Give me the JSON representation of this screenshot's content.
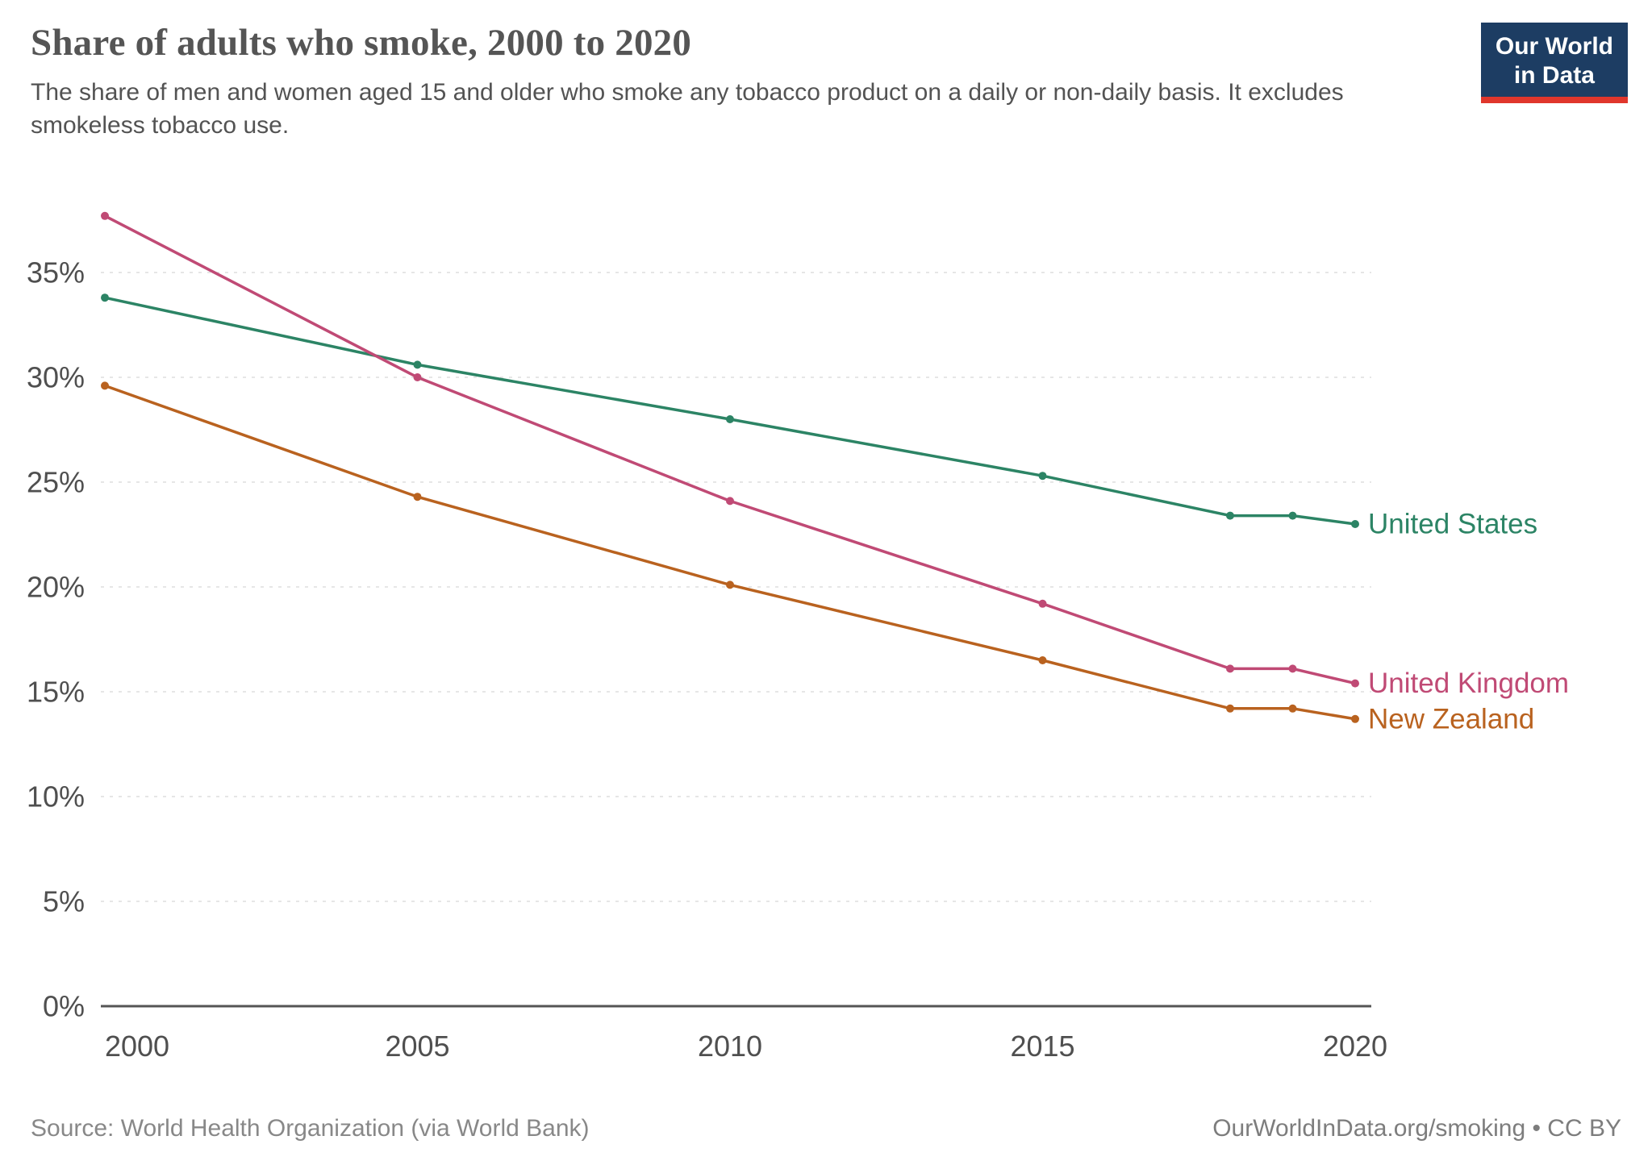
{
  "header": {
    "title": "Share of adults who smoke, 2000 to 2020",
    "subtitle": "The share of men and women aged 15 and older who smoke any tobacco product on a daily or non-daily basis. It excludes smokeless tobacco use."
  },
  "logo": {
    "line1": "Our World",
    "line2": "in Data"
  },
  "footer": {
    "source": "Source: World Health Organization (via World Bank)",
    "link": "OurWorldInData.org/smoking • CC BY"
  },
  "colors": {
    "grid": "#dddddd",
    "axis": "#555555",
    "tick_label": "#4f4f4f"
  },
  "chart_data": {
    "type": "line",
    "title": "Share of adults who smoke, 2000 to 2020",
    "xlabel": "",
    "ylabel": "",
    "x": [
      2000,
      2005,
      2010,
      2015,
      2018,
      2019,
      2020
    ],
    "series": [
      {
        "name": "United States",
        "color": "#2C8465",
        "values": [
          33.8,
          30.6,
          28.0,
          25.3,
          23.4,
          23.4,
          23.0
        ]
      },
      {
        "name": "United Kingdom",
        "color": "#C04A75",
        "values": [
          37.7,
          30.0,
          24.1,
          19.2,
          16.1,
          16.1,
          15.4
        ]
      },
      {
        "name": "New Zealand",
        "color": "#B9621F",
        "values": [
          29.6,
          24.3,
          20.1,
          16.5,
          14.2,
          14.2,
          13.7
        ]
      }
    ],
    "ylim": [
      0,
      38
    ],
    "yticks": [
      0,
      5,
      10,
      15,
      20,
      25,
      30,
      35
    ],
    "ytick_suffix": "%",
    "xticks": [
      2000,
      2005,
      2010,
      2015,
      2020
    ],
    "grid": true,
    "legend_position": "right-end-labels"
  }
}
